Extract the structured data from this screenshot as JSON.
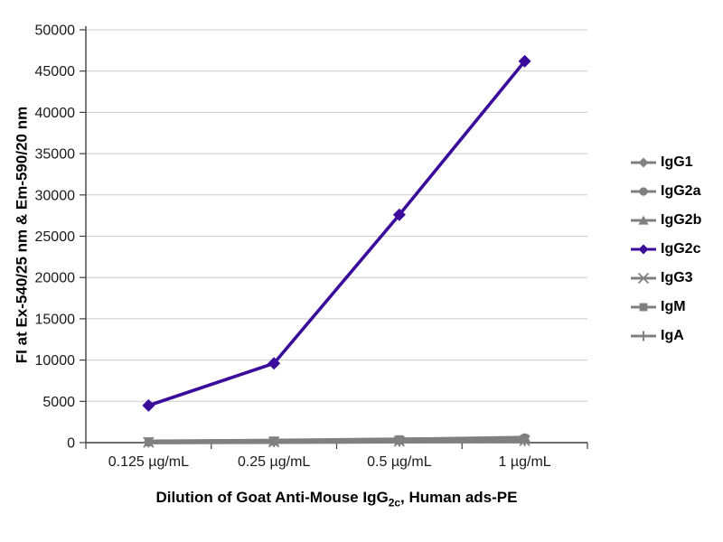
{
  "chart_data": {
    "type": "line",
    "title": "",
    "xlabel": "Dilution of Goat Anti-Mouse IgG2c, Human ads-PE",
    "xlabel_parts": [
      "Dilution of Goat Anti-Mouse IgG",
      "2c",
      ", Human ads-PE"
    ],
    "ylabel": "FI at Ex-540/25 nm & Em-590/20 nm",
    "categories": [
      "0.125 µg/mL",
      "0.25 µg/mL",
      "0.5 µg/mL",
      "1 µg/mL"
    ],
    "ylim": [
      0,
      50000
    ],
    "ytick_step": 5000,
    "grid": true,
    "legend_position": "right",
    "series": [
      {
        "name": "IgG1",
        "marker": "diamond",
        "color": "#808080",
        "values": [
          60,
          110,
          190,
          300
        ]
      },
      {
        "name": "IgG2a",
        "marker": "circle",
        "color": "#808080",
        "values": [
          120,
          220,
          380,
          620
        ]
      },
      {
        "name": "IgG2b",
        "marker": "triangle",
        "color": "#808080",
        "values": [
          80,
          150,
          260,
          430
        ]
      },
      {
        "name": "IgG2c",
        "marker": "diamond",
        "color": "#3b0c9b",
        "values": [
          4500,
          9600,
          27600,
          46200
        ]
      },
      {
        "name": "IgG3",
        "marker": "asterisk",
        "color": "#808080",
        "values": [
          40,
          90,
          160,
          240
        ]
      },
      {
        "name": "IgM",
        "marker": "square",
        "color": "#808080",
        "values": [
          160,
          260,
          410,
          520
        ]
      },
      {
        "name": "IgA",
        "marker": "plus",
        "color": "#808080",
        "values": [
          20,
          60,
          110,
          180
        ]
      }
    ]
  },
  "colors": {
    "accent": "#3b0c9b",
    "series_gray": "#808080",
    "grid": "#c9c9c9",
    "axis": "#3f3f3f",
    "text": "#1a1a1a"
  }
}
